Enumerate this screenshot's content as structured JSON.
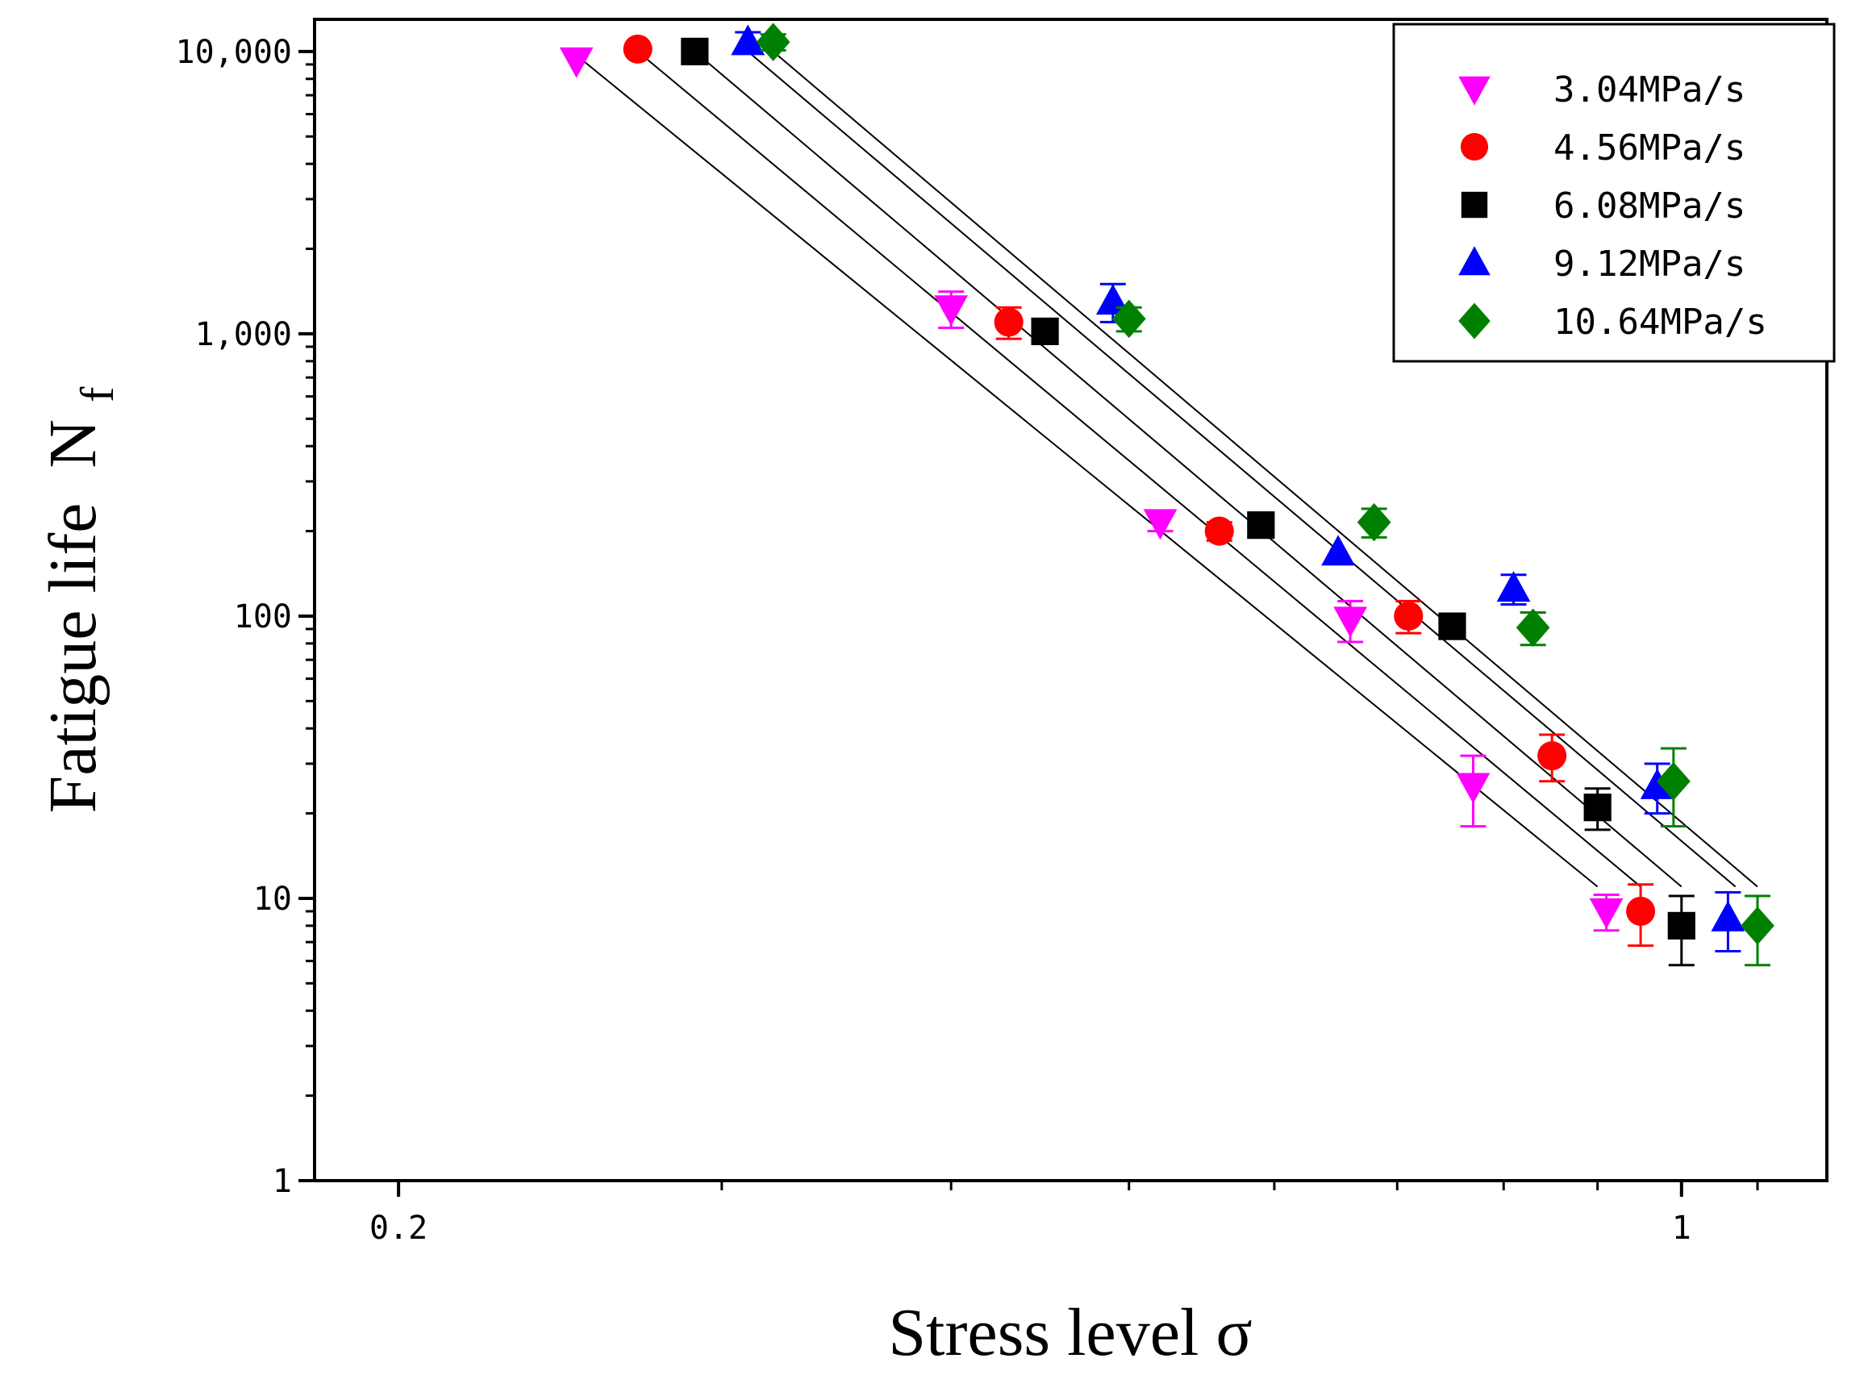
{
  "chart_data": {
    "type": "scatter",
    "xlabel": "Stress level σ",
    "ylabel_main": "Fatigue life",
    "ylabel_symbol": "N",
    "ylabel_subscript": "f",
    "x_scale": "log",
    "y_scale": "log",
    "xlim": [
      0.18,
      1.2
    ],
    "ylim": [
      1,
      13000
    ],
    "x_tick_labels": [
      {
        "value": 0.2,
        "label": "0.2"
      },
      {
        "value": 1,
        "label": "1"
      }
    ],
    "x_minor_ticks": [
      0.3,
      0.4,
      0.5,
      0.6,
      0.7,
      0.8,
      0.9,
      1.1
    ],
    "y_tick_labels": [
      {
        "value": 1,
        "label": "1"
      },
      {
        "value": 10,
        "label": "10"
      },
      {
        "value": 100,
        "label": "100"
      },
      {
        "value": 1000,
        "label": "1,000"
      },
      {
        "value": 10000,
        "label": "10,000"
      }
    ],
    "legend_position": "top-right",
    "series": [
      {
        "name": "3.04MPa/s",
        "color": "#ff00ff",
        "marker": "triangle-down",
        "points": [
          {
            "x": 0.25,
            "y": 9300,
            "err": 0
          },
          {
            "x": 0.4,
            "y": 1230,
            "err": 180
          },
          {
            "x": 0.52,
            "y": 215,
            "err": 15
          },
          {
            "x": 0.66,
            "y": 97,
            "err": 16
          },
          {
            "x": 0.77,
            "y": 25,
            "err": 7
          },
          {
            "x": 0.91,
            "y": 9,
            "err": 1.3
          }
        ],
        "fit": {
          "x0": 0.25,
          "y0": 9700,
          "x1": 0.9,
          "y1": 11
        }
      },
      {
        "name": "4.56MPa/s",
        "color": "#ff0000",
        "marker": "circle",
        "points": [
          {
            "x": 0.27,
            "y": 10200,
            "err": 0
          },
          {
            "x": 0.43,
            "y": 1100,
            "err": 140
          },
          {
            "x": 0.56,
            "y": 200,
            "err": 15
          },
          {
            "x": 0.71,
            "y": 100,
            "err": 13
          },
          {
            "x": 0.85,
            "y": 32,
            "err": 6
          },
          {
            "x": 0.95,
            "y": 9,
            "err": 2.2
          }
        ],
        "fit": {
          "x0": 0.27,
          "y0": 10000,
          "x1": 0.95,
          "y1": 11
        }
      },
      {
        "name": "6.08MPa/s",
        "color": "#000000",
        "marker": "square",
        "points": [
          {
            "x": 0.29,
            "y": 10000,
            "err": 0
          },
          {
            "x": 0.45,
            "y": 1020,
            "err": 0
          },
          {
            "x": 0.59,
            "y": 210,
            "err": 0
          },
          {
            "x": 0.75,
            "y": 92,
            "err": 0
          },
          {
            "x": 0.9,
            "y": 21,
            "err": 3.5
          },
          {
            "x": 1.0,
            "y": 8,
            "err": 2.2
          }
        ],
        "fit": {
          "x0": 0.29,
          "y0": 10000,
          "x1": 1.0,
          "y1": 11
        }
      },
      {
        "name": "9.12MPa/s",
        "color": "#0000ff",
        "marker": "triangle-up",
        "points": [
          {
            "x": 0.31,
            "y": 10800,
            "err": 900
          },
          {
            "x": 0.49,
            "y": 1300,
            "err": 200
          },
          {
            "x": 0.65,
            "y": 168,
            "err": 0
          },
          {
            "x": 0.81,
            "y": 125,
            "err": 15
          },
          {
            "x": 0.97,
            "y": 25,
            "err": 5
          },
          {
            "x": 1.06,
            "y": 8.5,
            "err": 2
          }
        ],
        "fit": {
          "x0": 0.31,
          "y0": 10000,
          "x1": 1.07,
          "y1": 11
        }
      },
      {
        "name": "10.64MPa/s",
        "color": "#008000",
        "marker": "diamond",
        "points": [
          {
            "x": 0.32,
            "y": 10800,
            "err": 700
          },
          {
            "x": 0.5,
            "y": 1130,
            "err": 110
          },
          {
            "x": 0.68,
            "y": 215,
            "err": 25
          },
          {
            "x": 0.83,
            "y": 91,
            "err": 12
          },
          {
            "x": 0.99,
            "y": 26,
            "err": 8
          },
          {
            "x": 1.1,
            "y": 8,
            "err": 2.2
          }
        ],
        "fit": {
          "x0": 0.32,
          "y0": 10000,
          "x1": 1.1,
          "y1": 11
        }
      }
    ]
  }
}
